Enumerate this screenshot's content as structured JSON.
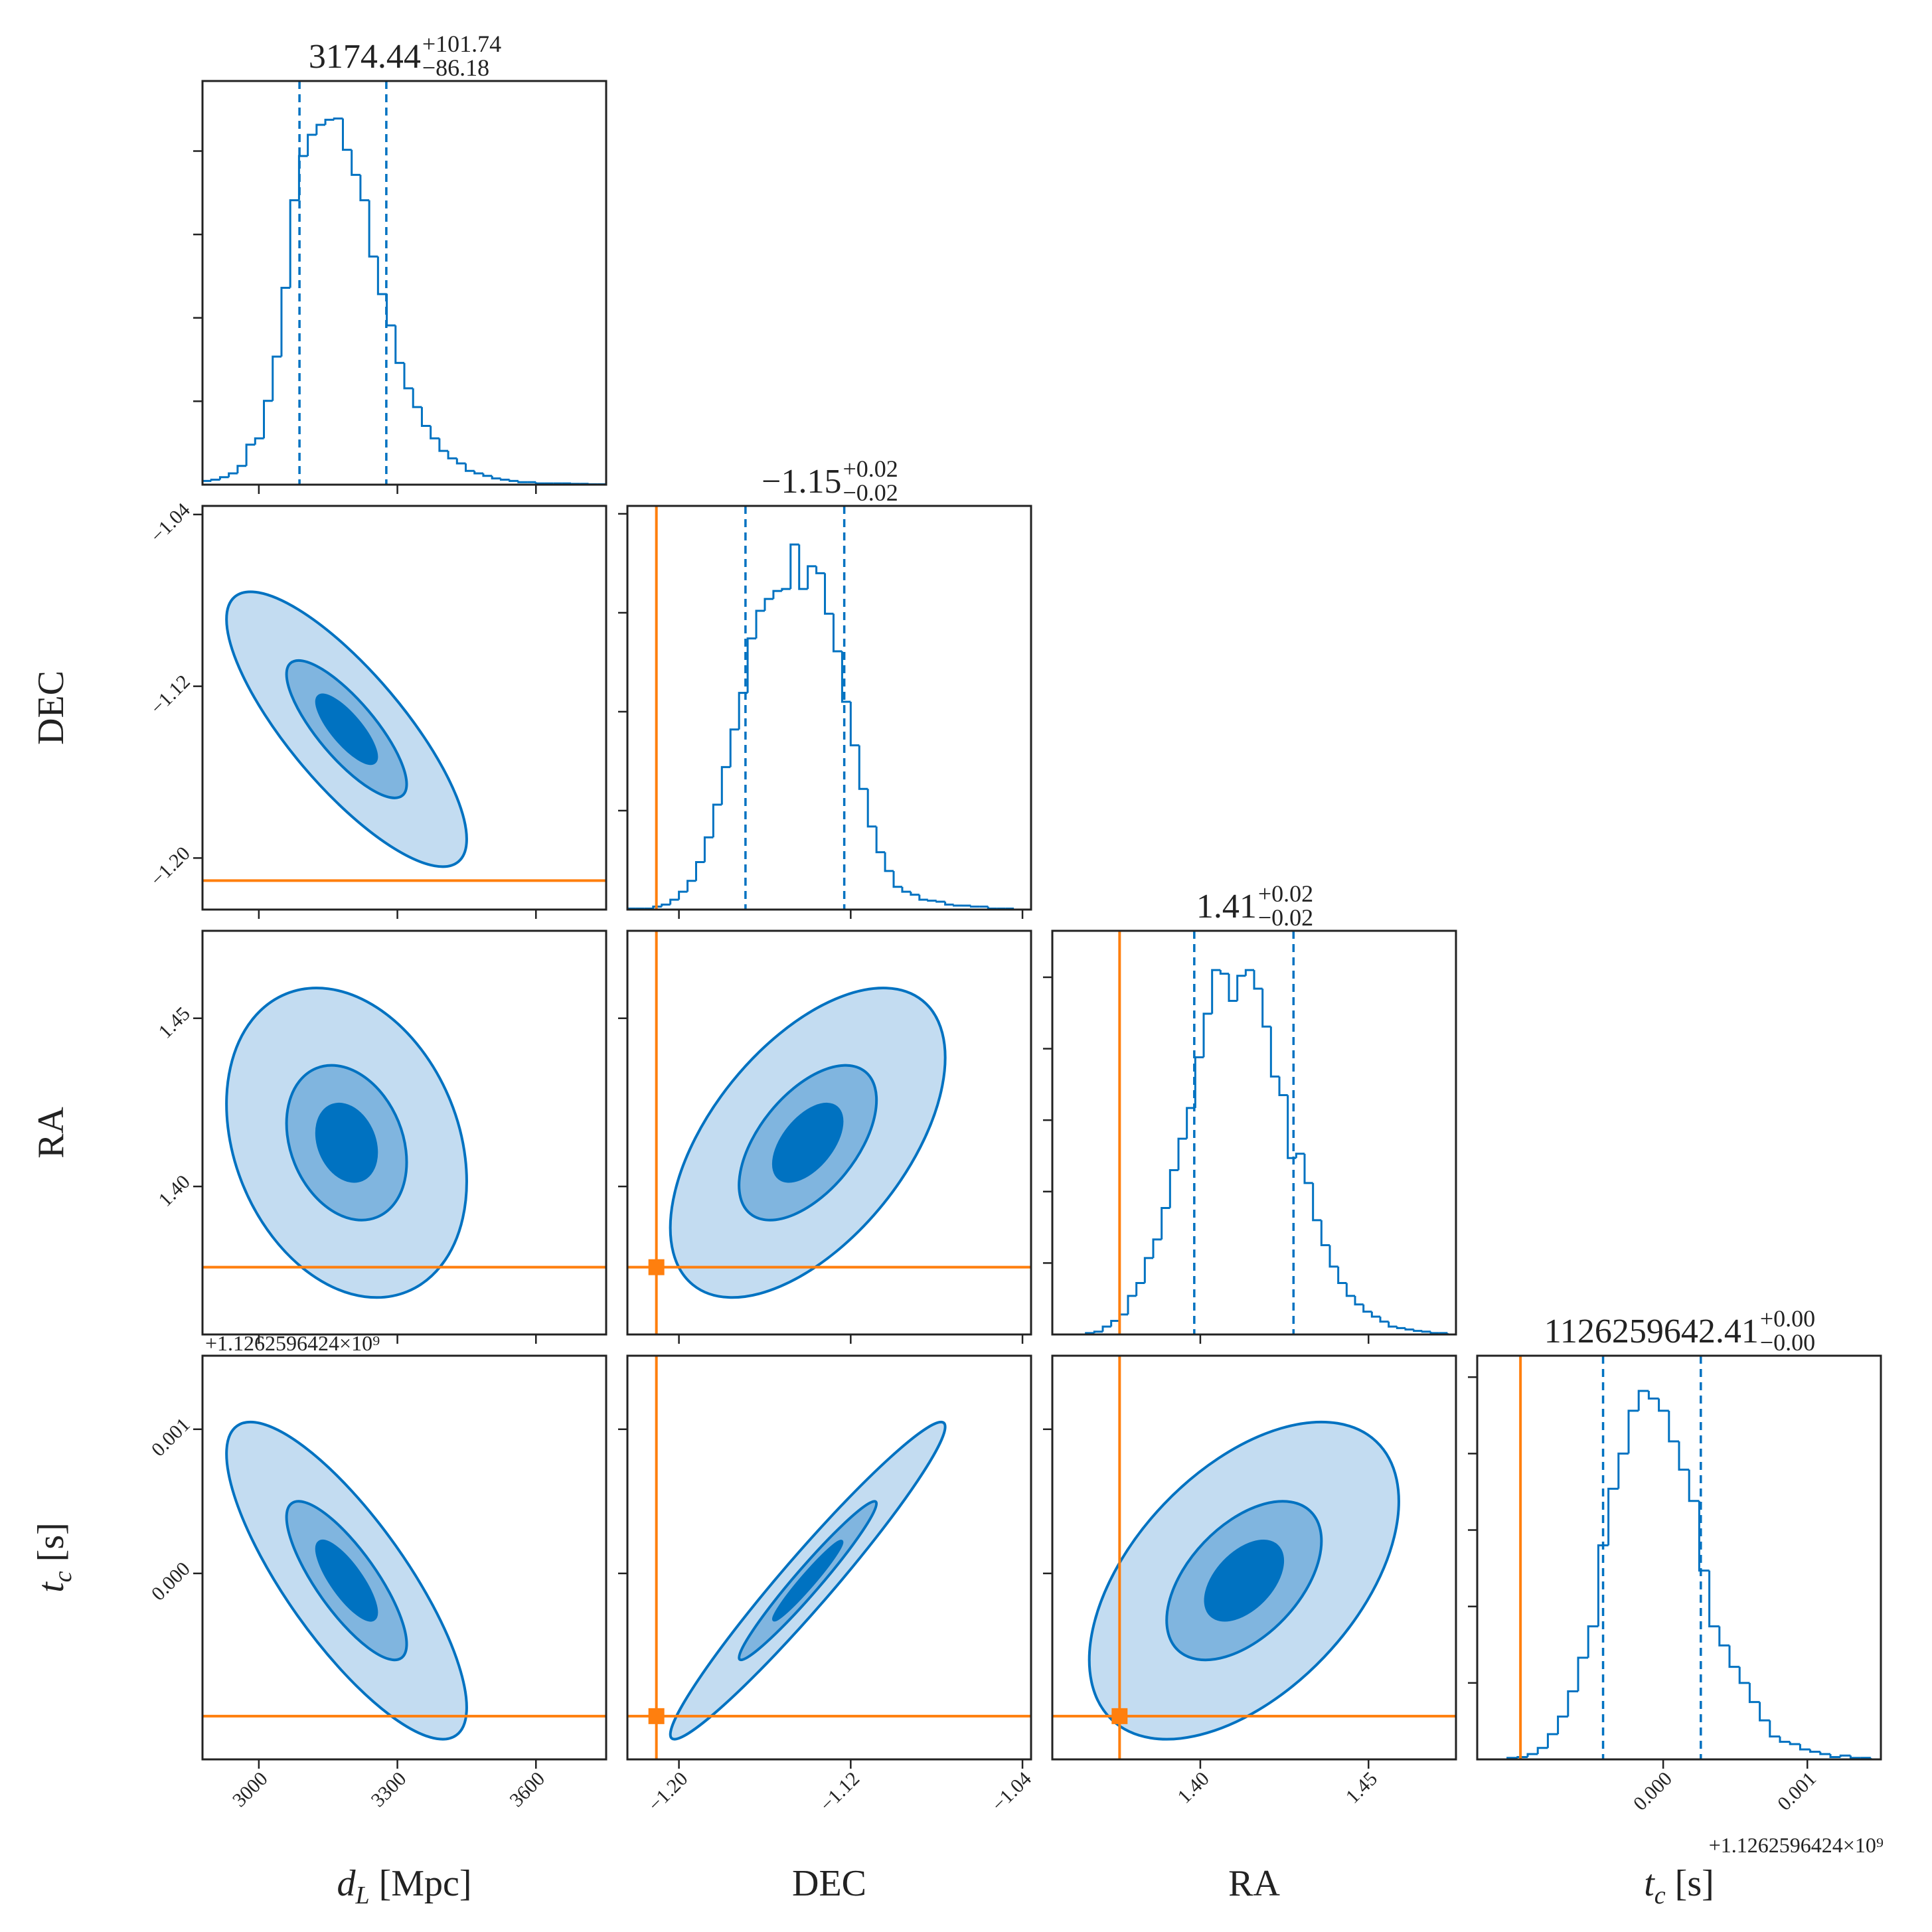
{
  "chart_data": {
    "type": "corner",
    "color": "#0072c1",
    "truth_color": "#ff7f0e",
    "contour_levels": [
      2,
      1,
      0.5
    ],
    "contour_fills": [
      "#c3dcf1",
      "#80b5df",
      "#0072c1"
    ],
    "parameters": [
      {
        "label": {
          "symbol": "d",
          "subscript": "L",
          "unit": "[Mpc]"
        },
        "lim": [
          2878,
          3752
        ],
        "ticks": [
          3000,
          3300,
          3600
        ],
        "truth": null,
        "title": {
          "median": "3174.44",
          "plus": "+101.74",
          "minus": "−86.18"
        },
        "quantiles": [
          3088,
          3276
        ],
        "bins": [
          2878,
          2897,
          2916,
          2935,
          2954,
          2973,
          2992,
          3011,
          3030,
          3049,
          3068,
          3087,
          3106,
          3125,
          3144,
          3163,
          3182,
          3201,
          3220,
          3239,
          3258,
          3277,
          3296,
          3315,
          3334,
          3353,
          3372,
          3391,
          3410,
          3429,
          3448,
          3467,
          3486,
          3505,
          3524,
          3543,
          3562,
          3581,
          3600,
          3619,
          3638,
          3657,
          3676,
          3695,
          3714,
          3733,
          3752
        ],
        "counts": [
          9,
          12,
          18,
          27,
          45,
          96,
          111,
          201,
          307,
          472,
          682,
          788,
          839,
          863,
          875,
          878,
          803,
          743,
          682,
          547,
          457,
          382,
          292,
          231,
          186,
          141,
          111,
          81,
          63,
          51,
          33,
          27,
          21,
          15,
          12,
          9,
          6,
          6,
          3,
          3,
          3,
          3,
          2,
          2,
          1,
          1
        ],
        "hist_ylim": [
          0,
          968
        ],
        "hist_yticks": [
          200,
          400,
          600,
          800
        ],
        "mean": 3190,
        "std": 130
      },
      {
        "label": {
          "symbol": "DEC"
        },
        "lim": [
          -1.224,
          -1.036
        ],
        "ticks": [
          {
            "value": -1.2,
            "label": "−1.20"
          },
          {
            "value": -1.12,
            "label": "−1.12"
          },
          {
            "value": -1.04,
            "label": "−1.04"
          }
        ],
        "truth": -1.2105,
        "title": {
          "median": "−1.15",
          "plus": "+0.02",
          "minus": "−0.02"
        },
        "quantiles": [
          -1.169,
          -1.123
        ],
        "bins": [
          -1.224,
          -1.22,
          -1.216,
          -1.212,
          -1.208,
          -1.204,
          -1.2,
          -1.196,
          -1.192,
          -1.188,
          -1.184,
          -1.18,
          -1.176,
          -1.172,
          -1.168,
          -1.164,
          -1.16,
          -1.156,
          -1.152,
          -1.148,
          -1.144,
          -1.14,
          -1.136,
          -1.132,
          -1.128,
          -1.124,
          -1.12,
          -1.116,
          -1.112,
          -1.108,
          -1.104,
          -1.1,
          -1.096,
          -1.092,
          -1.088,
          -1.084,
          -1.08,
          -1.076,
          -1.072,
          -1.068,
          -1.064,
          -1.06,
          -1.056,
          -1.052,
          -1.048,
          -1.044,
          -1.04,
          -1.036
        ],
        "counts": [
          1,
          1,
          1,
          3,
          5,
          10,
          18,
          29,
          48,
          73,
          106,
          144,
          182,
          219,
          274,
          302,
          314,
          322,
          324,
          369,
          324,
          347,
          340,
          299,
          261,
          210,
          166,
          122,
          84,
          58,
          39,
          23,
          18,
          15,
          10,
          9,
          8,
          5,
          4,
          4,
          3,
          3,
          1,
          1,
          1,
          0,
          0
        ],
        "hist_ylim": [
          0,
          408
        ],
        "hist_yticks": [
          100,
          200,
          300,
          400
        ],
        "mean": -1.14,
        "std": 0.032
      },
      {
        "label": {
          "symbol": "RA"
        },
        "lim": [
          1.356,
          1.476
        ],
        "ticks": [
          {
            "value": 1.4,
            "label": "1.40"
          },
          {
            "value": 1.45,
            "label": "1.45"
          }
        ],
        "truth": 1.376,
        "title": {
          "median": "1.41",
          "plus": "+0.02",
          "minus": "−0.02"
        },
        "quantiles": [
          1.3982,
          1.4277
        ],
        "bins": [
          1.356,
          1.3585,
          1.361,
          1.3635,
          1.366,
          1.3685,
          1.371,
          1.3735,
          1.376,
          1.3785,
          1.381,
          1.3835,
          1.386,
          1.3885,
          1.391,
          1.3935,
          1.396,
          1.3985,
          1.401,
          1.4035,
          1.406,
          1.4085,
          1.411,
          1.4135,
          1.416,
          1.4185,
          1.421,
          1.4235,
          1.426,
          1.4285,
          1.431,
          1.4335,
          1.436,
          1.4385,
          1.441,
          1.4435,
          1.446,
          1.4485,
          1.451,
          1.4535,
          1.456,
          1.4585,
          1.461,
          1.4635,
          1.466,
          1.4685,
          1.471,
          1.4735,
          1.476
        ],
        "counts": [
          0,
          0,
          0,
          0,
          2,
          4,
          11,
          19,
          28,
          54,
          72,
          107,
          133,
          177,
          230,
          274,
          317,
          388,
          449,
          510,
          505,
          467,
          502,
          510,
          484,
          431,
          361,
          335,
          247,
          253,
          212,
          160,
          125,
          95,
          72,
          54,
          42,
          32,
          25,
          18,
          11,
          9,
          7,
          5,
          4,
          2,
          2,
          0
        ],
        "hist_ylim": [
          0,
          565
        ],
        "hist_yticks": [
          100,
          200,
          300,
          400,
          500
        ],
        "mean": 1.413,
        "std": 0.023
      },
      {
        "label": {
          "symbol": "t",
          "subscript": "c",
          "unit": "[s]"
        },
        "lim": [
          -0.00129,
          0.00151
        ],
        "ticks": [
          {
            "value": 0,
            "label": "0.000"
          },
          {
            "value": 0.001,
            "label": "0.001"
          }
        ],
        "truth": -0.00099,
        "offset": "+1.1262596424×10⁹",
        "title": {
          "median": "1126259642.41",
          "plus": "+0.00",
          "minus": "−0.00"
        },
        "quantiles": [
          -0.000417,
          0.000261
        ],
        "bins": [
          -0.00129,
          -0.00122,
          -0.00115,
          -0.00108,
          -0.00101,
          -0.00094,
          -0.00087,
          -0.0008,
          -0.00073,
          -0.00066,
          -0.00059,
          -0.00052,
          -0.00045,
          -0.00038,
          -0.00031,
          -0.00024,
          -0.00017,
          -0.0001,
          -3e-05,
          4e-05,
          0.00011,
          0.00018,
          0.00025,
          0.00032,
          0.00039,
          0.00046,
          0.00053,
          0.0006,
          0.00067,
          0.00074,
          0.00081,
          0.00088,
          0.00095,
          0.00102,
          0.00109,
          0.00116,
          0.00123,
          0.0013,
          0.00137,
          0.00144,
          0.00151
        ],
        "counts": [
          0,
          0,
          0,
          2,
          3,
          7,
          15,
          33,
          56,
          89,
          133,
          174,
          280,
          354,
          400,
          456,
          482,
          472,
          456,
          416,
          379,
          338,
          247,
          174,
          149,
          121,
          100,
          75,
          51,
          30,
          23,
          20,
          13,
          10,
          7,
          3,
          5,
          2,
          2,
          0
        ],
        "hist_ylim": [
          0,
          528
        ],
        "hist_yticks": [
          100,
          200,
          300,
          400,
          500
        ],
        "mean": -5e-05,
        "std": 0.00055
      }
    ],
    "correlations": [
      [
        -0.8
      ],
      [
        -0.25,
        0.55
      ],
      [
        -0.8,
        0.97,
        0.5
      ]
    ]
  }
}
